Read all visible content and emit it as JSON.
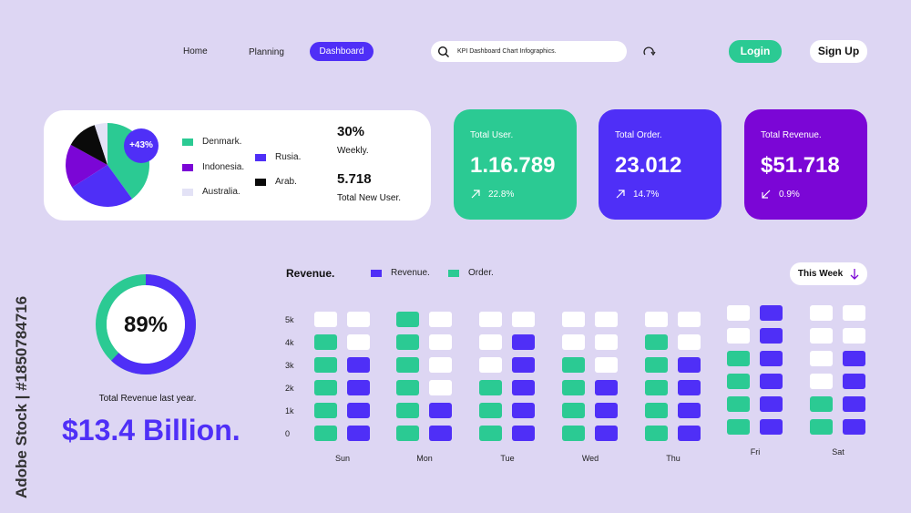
{
  "nav": {
    "home": "Home",
    "planning": "Planning",
    "dashboard": "Dashboard",
    "search_value": "KPI Dashboard Chart Infographics.",
    "login": "Login",
    "signup": "Sign Up"
  },
  "colors": {
    "green": "#2bca93",
    "blue": "#4f2ff7",
    "purple": "#7b06d6",
    "black": "#0a0a0a",
    "light": "#e3e2f6",
    "bg": "#ddd6f3"
  },
  "pie_card": {
    "badge": "+43%",
    "legend": [
      {
        "label": "Denmark.",
        "color": "#2bca93"
      },
      {
        "label": "Indonesia.",
        "color": "#7b06d6"
      },
      {
        "label": "Australia.",
        "color": "#e3e2f6"
      },
      {
        "label": "Rusia.",
        "color": "#4f2ff7"
      },
      {
        "label": "Arab.",
        "color": "#0a0a0a"
      }
    ],
    "stat1_value": "30%",
    "stat1_label": "Weekly.",
    "stat2_value": "5.718",
    "stat2_label": "Total New User."
  },
  "kpis": [
    {
      "title": "Total User.",
      "value": "1.16.789",
      "change": "22.8%",
      "trend": "up",
      "color": "#2bca93"
    },
    {
      "title": "Total Order.",
      "value": "23.012",
      "change": "14.7%",
      "trend": "up",
      "color": "#4f2ff7"
    },
    {
      "title": "Total Revenue.",
      "value": "$51.718",
      "change": "0.9%",
      "trend": "down",
      "color": "#7b06d6"
    }
  ],
  "ring": {
    "percent": 89,
    "label": "89%",
    "caption": "Total Revenue last year.",
    "big_value": "$13.4 Billion."
  },
  "watermark": "Adobe Stock | #1850784716",
  "chart_data": [
    {
      "type": "pie",
      "title": "",
      "slices": [
        {
          "label": "Denmark.",
          "value": 40
        },
        {
          "label": "Rusia.",
          "value": 26
        },
        {
          "label": "Indonesia.",
          "value": 17
        },
        {
          "label": "Arab.",
          "value": 12
        },
        {
          "label": "Australia.",
          "value": 5
        }
      ]
    },
    {
      "type": "bar",
      "title": "Revenue.",
      "range_label": "This Week",
      "categories": [
        "Sun",
        "Mon",
        "Tue",
        "Wed",
        "Thu",
        "Fri",
        "Sat"
      ],
      "yticks": [
        "5k",
        "4k",
        "3k",
        "2k",
        "1k",
        "0"
      ],
      "ylim": [
        0,
        5
      ],
      "ylabel": "",
      "xlabel": "",
      "series": [
        {
          "name": "Order.",
          "color": "#2bca93",
          "values": [
            4,
            5,
            2,
            3,
            4,
            3,
            1
          ]
        },
        {
          "name": "Revenue.",
          "color": "#4f2ff7",
          "values": [
            3,
            1,
            4,
            2,
            3,
            5,
            3
          ]
        }
      ],
      "legend": "top"
    }
  ]
}
